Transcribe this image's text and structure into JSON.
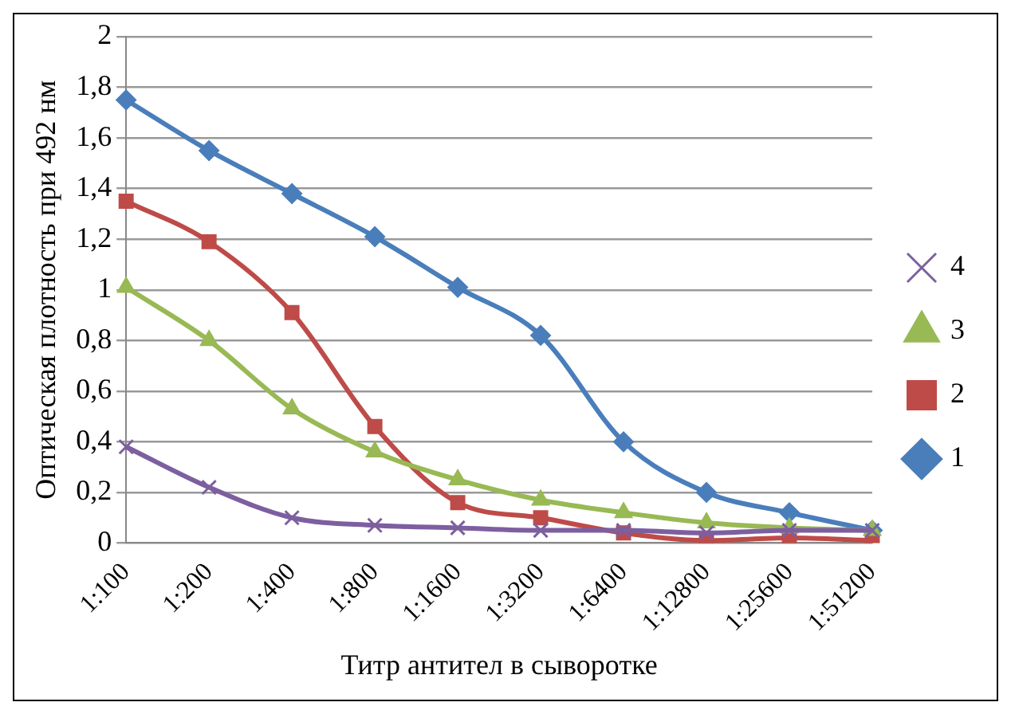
{
  "chart_data": {
    "type": "line",
    "xlabel": "Титр антител в сыворотке",
    "ylabel": "Оптическая плотность при 492 нм",
    "categories": [
      "1:100",
      "1:200",
      "1:400",
      "1:800",
      "1:1600",
      "1:3200",
      "1:6400",
      "1:12800",
      "1:25600",
      "1:51200"
    ],
    "ylim": [
      0,
      2
    ],
    "yticks": [
      0,
      {
        "value": 0.2,
        "label": "0,2"
      },
      {
        "value": 0.4,
        "label": "0,4"
      },
      {
        "value": 0.6,
        "label": "0,6"
      },
      {
        "value": 0.8,
        "label": "0,8"
      },
      1,
      {
        "value": 1.2,
        "label": "1,2"
      },
      {
        "value": 1.4,
        "label": "1,4"
      },
      {
        "value": 1.6,
        "label": "1,6"
      },
      {
        "value": 1.8,
        "label": "1,8"
      },
      2
    ],
    "grid": "y",
    "legend": "right",
    "series": [
      {
        "name": "1",
        "color": "#4a7ebb",
        "marker": "diamond",
        "values": [
          1.75,
          1.55,
          1.38,
          1.21,
          1.01,
          0.82,
          0.4,
          0.2,
          0.12,
          0.05
        ]
      },
      {
        "name": "2",
        "color": "#be4b48",
        "marker": "square",
        "values": [
          1.35,
          1.19,
          0.91,
          0.46,
          0.16,
          0.1,
          0.04,
          0.01,
          0.02,
          0.01
        ]
      },
      {
        "name": "3",
        "color": "#98b954",
        "marker": "triangle",
        "values": [
          1.01,
          0.8,
          0.53,
          0.36,
          0.25,
          0.17,
          0.12,
          0.08,
          0.06,
          0.05
        ]
      },
      {
        "name": "4",
        "color": "#7d5fa0",
        "marker": "cross",
        "values": [
          0.38,
          0.22,
          0.1,
          0.07,
          0.06,
          0.05,
          0.05,
          0.04,
          0.05,
          0.05
        ]
      }
    ]
  }
}
